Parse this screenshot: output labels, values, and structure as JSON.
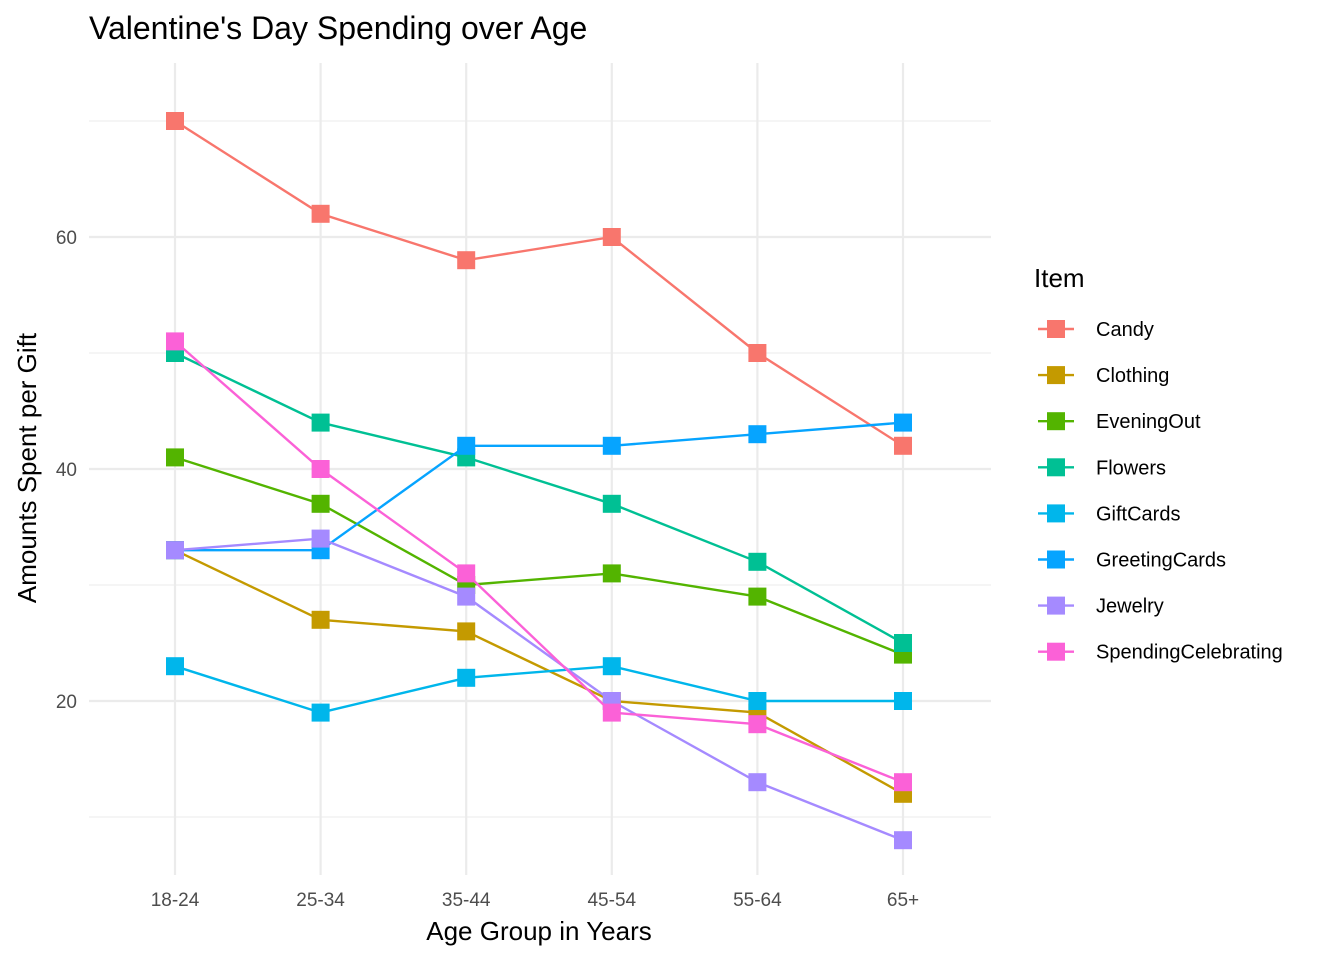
{
  "chart_data": {
    "type": "line",
    "title": "Valentine's Day Spending over Age",
    "xlabel": "Age Group in Years",
    "ylabel": "Amounts Spent per Gift",
    "categories": [
      "18-24",
      "25-34",
      "35-44",
      "45-54",
      "55-64",
      "65+"
    ],
    "ylim": [
      5,
      75
    ],
    "y_ticks": [
      20,
      40,
      60
    ],
    "y_tick_labels": [
      "20",
      "40",
      "60"
    ],
    "grid": true,
    "legend": {
      "title": "Item",
      "position": "right"
    },
    "series": [
      {
        "name": "Candy",
        "color": "#F8766D",
        "values": [
          70,
          62,
          58,
          60,
          50,
          42
        ]
      },
      {
        "name": "Clothing",
        "color": "#C49A00",
        "values": [
          33,
          27,
          26,
          20,
          19,
          12
        ]
      },
      {
        "name": "EveningOut",
        "color": "#53B400",
        "values": [
          41,
          37,
          30,
          31,
          29,
          24
        ]
      },
      {
        "name": "Flowers",
        "color": "#00C094",
        "values": [
          50,
          44,
          41,
          37,
          32,
          25
        ]
      },
      {
        "name": "GiftCards",
        "color": "#00B6EB",
        "values": [
          23,
          19,
          22,
          23,
          20,
          20
        ]
      },
      {
        "name": "GreetingCards",
        "color": "#06A4FF",
        "values": [
          33,
          33,
          42,
          42,
          43,
          44
        ]
      },
      {
        "name": "Jewelry",
        "color": "#A58AFF",
        "values": [
          33,
          34,
          29,
          20,
          13,
          8
        ]
      },
      {
        "name": "SpendingCelebrating",
        "color": "#FB61D7",
        "values": [
          51,
          40,
          31,
          19,
          18,
          13
        ]
      }
    ]
  }
}
